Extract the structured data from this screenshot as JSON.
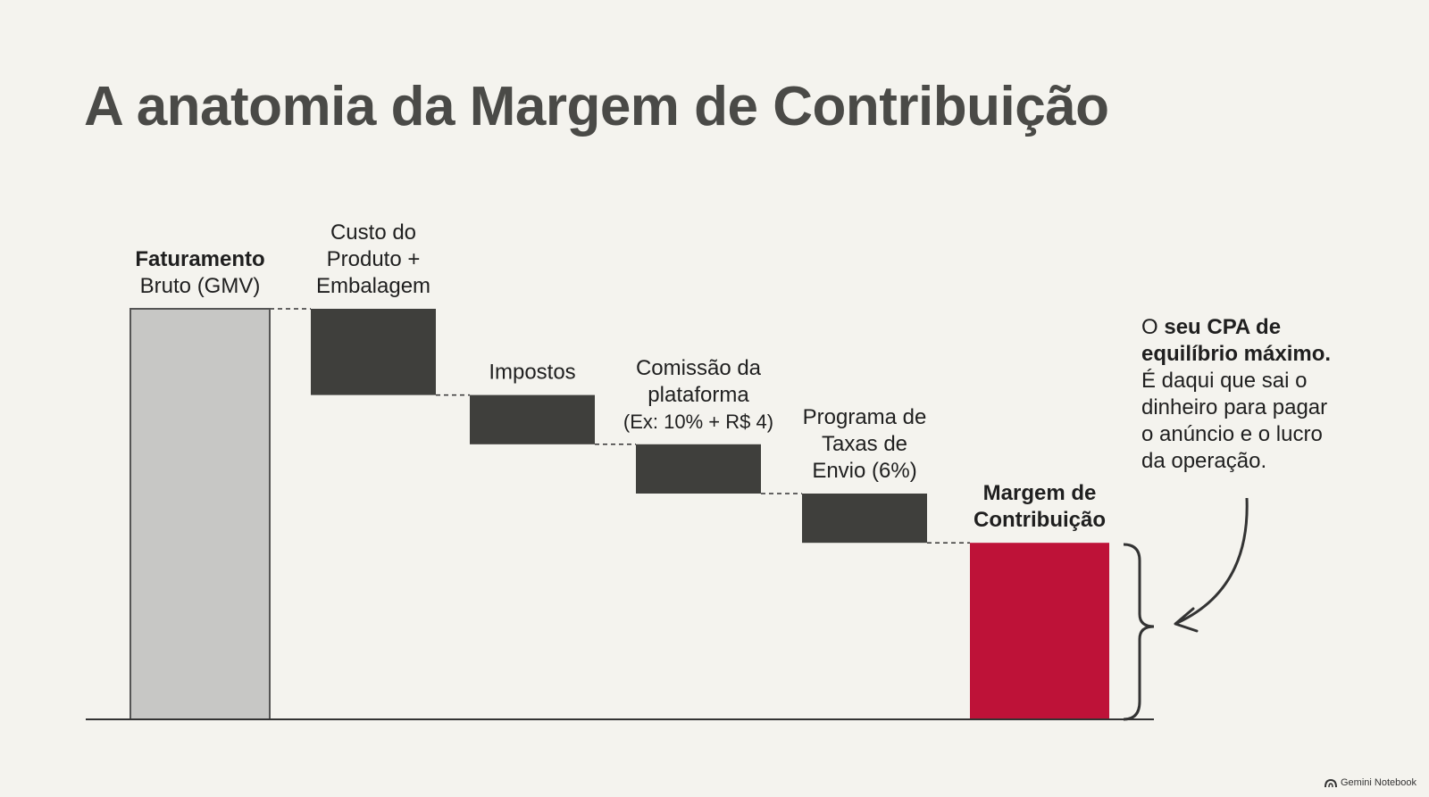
{
  "title": "A anatomia da Margem de Contribuição",
  "chart_data": {
    "type": "bar",
    "subtype": "waterfall",
    "title": "A anatomia da Margem de Contribuição",
    "categories": [
      {
        "lines": [
          "Faturamento",
          "Bruto (GMV)"
        ],
        "bold_lines": [
          0
        ]
      },
      {
        "lines": [
          "Custo do",
          "Produto +",
          "Embalagem"
        ],
        "bold_lines": []
      },
      {
        "lines": [
          "Impostos"
        ],
        "bold_lines": []
      },
      {
        "lines": [
          "Comissão da",
          "plataforma",
          "(Ex: 10% + R$ 4)"
        ],
        "bold_lines": []
      },
      {
        "lines": [
          "Programa de",
          "Taxas de",
          "Envio (6%)"
        ],
        "bold_lines": []
      },
      {
        "lines": [
          "Margem de",
          "Contribuição"
        ],
        "bold_lines": [
          0,
          1
        ]
      }
    ],
    "steps": [
      {
        "kind": "total",
        "start": 0,
        "end": 100
      },
      {
        "kind": "decrease",
        "start": 100,
        "end": 79
      },
      {
        "kind": "decrease",
        "start": 79,
        "end": 67
      },
      {
        "kind": "decrease",
        "start": 67,
        "end": 55
      },
      {
        "kind": "decrease",
        "start": 55,
        "end": 43
      },
      {
        "kind": "total",
        "start": 0,
        "end": 43
      }
    ],
    "ylim": [
      0,
      100
    ],
    "grid": false,
    "legend": "none",
    "colors": {
      "total": "#c7c7c5",
      "decrease": "#3f3f3c",
      "result": "#be1238"
    }
  },
  "callout": {
    "lines": [
      [
        {
          "t": "O ",
          "b": false
        },
        {
          "t": "seu CPA de",
          "b": true
        }
      ],
      [
        {
          "t": "equilíbrio máximo.",
          "b": true
        }
      ],
      [
        {
          "t": "É daqui que sai o",
          "b": false
        }
      ],
      [
        {
          "t": "dinheiro para pagar",
          "b": false
        }
      ],
      [
        {
          "t": "o anúncio e o lucro",
          "b": false
        }
      ],
      [
        {
          "t": "da operação.",
          "b": false
        }
      ]
    ]
  },
  "footer": {
    "brand": "Gemini Notebook",
    "icon": "notebook-logo-icon"
  }
}
